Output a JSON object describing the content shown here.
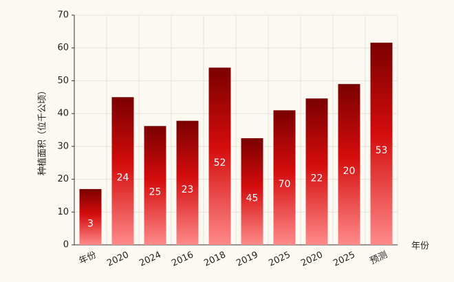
{
  "chart_data": {
    "type": "bar",
    "x_label": "年份",
    "y_label": "种植面积（位千公顷）",
    "categories": [
      "年份",
      "2020",
      "2024",
      "2016",
      "2018",
      "2019",
      "2025",
      "2020",
      "2025",
      "预测"
    ],
    "values": [
      17,
      45,
      36.2,
      37.8,
      54,
      32.5,
      41,
      44.6,
      49,
      61.6
    ],
    "annotations": [
      "3",
      "24",
      "25",
      "23",
      "52",
      "45",
      "70",
      "22",
      "20",
      "53"
    ],
    "color": "#b30000",
    "ylim": [
      0,
      70
    ],
    "yticks": [
      0,
      10,
      20,
      30,
      40,
      50,
      60,
      70
    ],
    "grid": true
  }
}
